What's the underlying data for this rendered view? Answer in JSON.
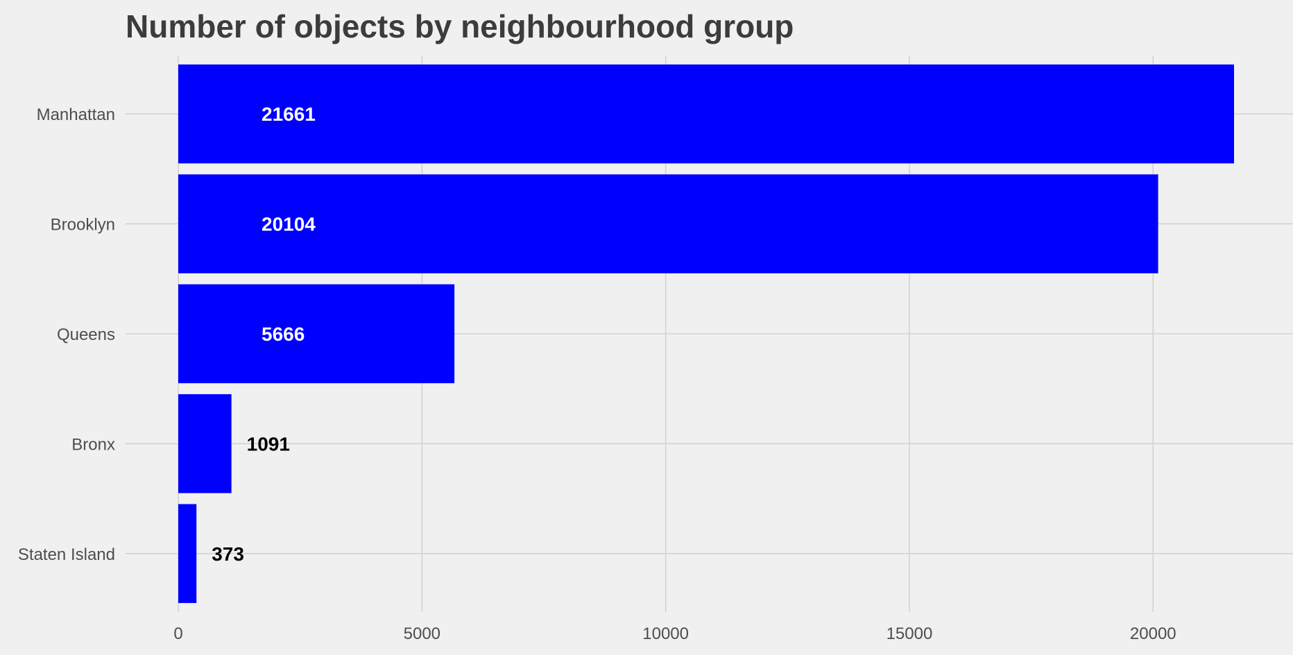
{
  "chart_data": {
    "type": "bar",
    "orientation": "horizontal",
    "title": "Number of objects by neighbourhood group",
    "xlabel": "",
    "ylabel": "",
    "categories": [
      "Manhattan",
      "Brooklyn",
      "Queens",
      "Bronx",
      "Staten Island"
    ],
    "values": [
      21661,
      20104,
      5666,
      1091,
      373
    ],
    "data_labels": [
      "21661",
      "20104",
      "5666",
      "1091",
      "373"
    ],
    "xlim": [
      0,
      23000
    ],
    "x_ticks": [
      0,
      5000,
      10000,
      15000,
      20000
    ],
    "x_tick_labels": [
      "0",
      "5000",
      "10000",
      "15000",
      "20000"
    ],
    "grid": true,
    "legend": "none",
    "colors": {
      "bar": "#0000ff",
      "background": "#f0f0f0",
      "grid": "#d2d2d2",
      "label_inside": "#ffffff",
      "label_outside": "#000000",
      "title": "#3c3c3c",
      "tick": "#4d4d4d"
    }
  }
}
